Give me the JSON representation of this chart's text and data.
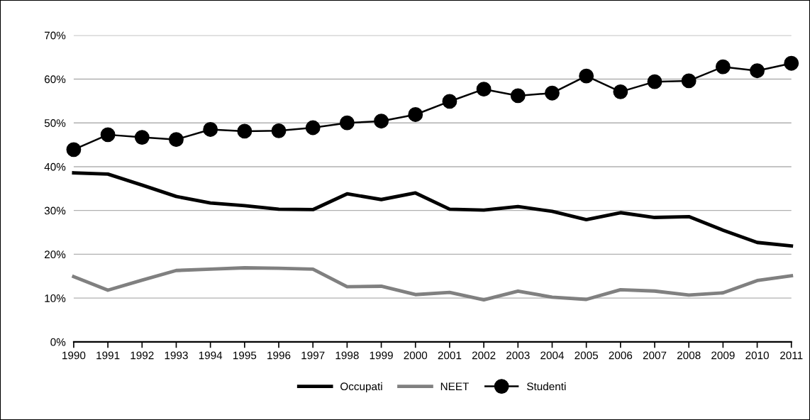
{
  "chart_data": {
    "type": "line",
    "categories": [
      "1990",
      "1991",
      "1992",
      "1993",
      "1994",
      "1995",
      "1996",
      "1997",
      "1998",
      "1999",
      "2000",
      "2001",
      "2002",
      "2003",
      "2004",
      "2005",
      "2006",
      "2007",
      "2008",
      "2009",
      "2010",
      "2011"
    ],
    "series": [
      {
        "name": "Occupati",
        "color": "#000000",
        "marker": "none",
        "values": [
          38.6,
          38.3,
          35.8,
          33.2,
          31.7,
          31.1,
          30.3,
          30.2,
          33.8,
          32.5,
          34.0,
          30.3,
          30.1,
          30.9,
          29.8,
          27.9,
          29.5,
          28.4,
          28.6,
          25.5,
          22.7,
          21.9
        ]
      },
      {
        "name": "NEET",
        "color": "#808080",
        "marker": "none",
        "values": [
          14.9,
          11.8,
          14.1,
          16.3,
          16.6,
          16.9,
          16.8,
          16.6,
          12.6,
          12.7,
          10.8,
          11.3,
          9.6,
          11.6,
          10.2,
          9.7,
          11.9,
          11.6,
          10.7,
          11.2,
          14.0,
          15.1
        ]
      },
      {
        "name": "Studenti",
        "color": "#000000",
        "marker": "circle",
        "values": [
          43.9,
          47.3,
          46.7,
          46.2,
          48.5,
          48.1,
          48.2,
          48.9,
          50.0,
          50.4,
          51.9,
          54.9,
          57.7,
          56.2,
          56.8,
          60.7,
          57.1,
          59.4,
          59.6,
          62.8,
          61.9,
          63.6
        ]
      }
    ],
    "ylim": [
      0,
      70
    ],
    "yticks": [
      {
        "value": 0,
        "label": "0%"
      },
      {
        "value": 10,
        "label": "10%"
      },
      {
        "value": 20,
        "label": "20%"
      },
      {
        "value": 30,
        "label": "30%"
      },
      {
        "value": 40,
        "label": "40%"
      },
      {
        "value": 50,
        "label": "50%"
      },
      {
        "value": 60,
        "label": "60%"
      },
      {
        "value": 70,
        "label": "70%"
      }
    ],
    "grid": "y",
    "legend": "bottom",
    "line_style": "solid"
  }
}
